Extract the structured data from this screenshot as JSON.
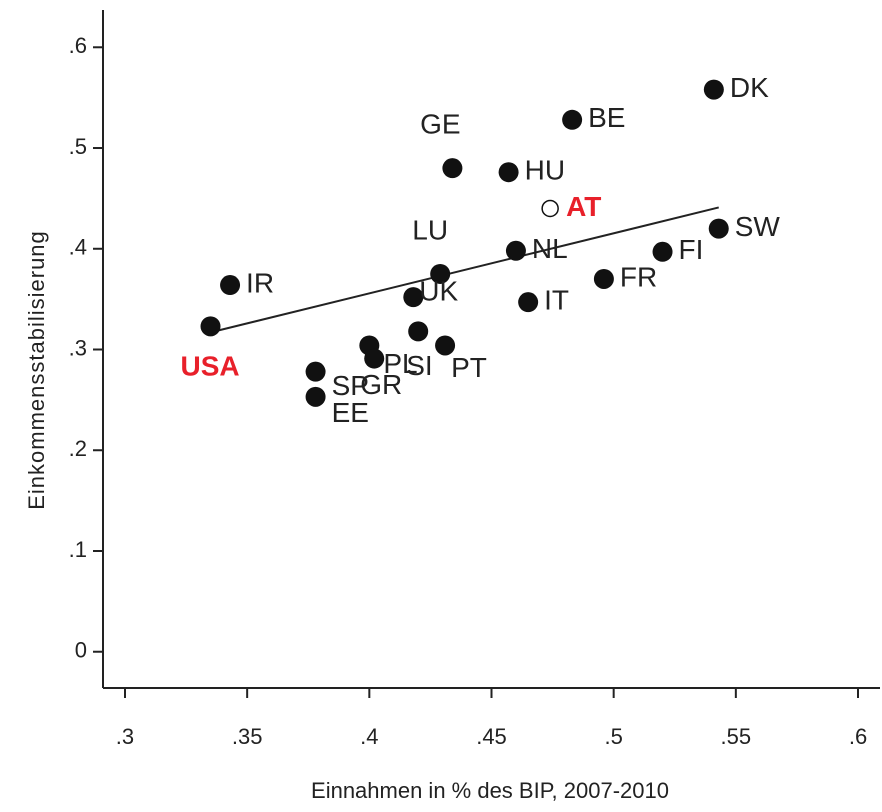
{
  "chart_data": {
    "type": "scatter",
    "x_label": "Einnahmen in % des BIP, 2007-2010",
    "y_label": "Einkommensstabilisierung",
    "xlim": [
      0.291,
      0.609
    ],
    "ylim": [
      -0.036,
      0.637
    ],
    "xticks": [
      {
        "value": 0.3,
        "label": ".3"
      },
      {
        "value": 0.35,
        "label": ".35"
      },
      {
        "value": 0.4,
        "label": ".4"
      },
      {
        "value": 0.45,
        "label": ".45"
      },
      {
        "value": 0.5,
        "label": ".5"
      },
      {
        "value": 0.55,
        "label": ".55"
      },
      {
        "value": 0.6,
        "label": ".6"
      }
    ],
    "yticks": [
      0,
      {
        "value": 0.1,
        "label": ".1"
      },
      {
        "value": 0.2,
        "label": ".2"
      },
      {
        "value": 0.3,
        "label": ".3"
      },
      {
        "value": 0.4,
        "label": ".4"
      },
      {
        "value": 0.5,
        "label": ".5"
      },
      {
        "value": 0.6,
        "label": ".6"
      }
    ],
    "color": "#111111",
    "points": [
      {
        "label": "DK",
        "x": 0.541,
        "y": 0.558
      },
      {
        "label": "BE",
        "x": 0.483,
        "y": 0.528
      },
      {
        "label": "GE",
        "x": 0.434,
        "y": 0.48
      },
      {
        "label": "HU",
        "x": 0.457,
        "y": 0.476
      },
      {
        "label": "AT",
        "x": 0.474,
        "y": 0.44,
        "marker": "hollow",
        "label_color": "#e8202a"
      },
      {
        "label": "SW",
        "x": 0.543,
        "y": 0.42
      },
      {
        "label": "FI",
        "x": 0.52,
        "y": 0.397
      },
      {
        "label": "NL",
        "x": 0.46,
        "y": 0.398
      },
      {
        "label": "LU",
        "x": 0.429,
        "y": 0.375
      },
      {
        "label": "IR",
        "x": 0.343,
        "y": 0.364
      },
      {
        "label": "FR",
        "x": 0.496,
        "y": 0.37
      },
      {
        "label": "UK",
        "x": 0.418,
        "y": 0.352
      },
      {
        "label": "IT",
        "x": 0.465,
        "y": 0.347
      },
      {
        "label": "USA",
        "x": 0.335,
        "y": 0.323,
        "label_color": "#e8202a"
      },
      {
        "label": "SI",
        "x": 0.42,
        "y": 0.318
      },
      {
        "label": "PT",
        "x": 0.431,
        "y": 0.304
      },
      {
        "label": "PL",
        "x": 0.4,
        "y": 0.304
      },
      {
        "label": "GR",
        "x": 0.402,
        "y": 0.291
      },
      {
        "label": "SP",
        "x": 0.378,
        "y": 0.278
      },
      {
        "label": "EE",
        "x": 0.378,
        "y": 0.253
      }
    ],
    "fit_line": {
      "x": [
        0.335,
        0.543
      ],
      "y": [
        0.317,
        0.441
      ]
    }
  }
}
